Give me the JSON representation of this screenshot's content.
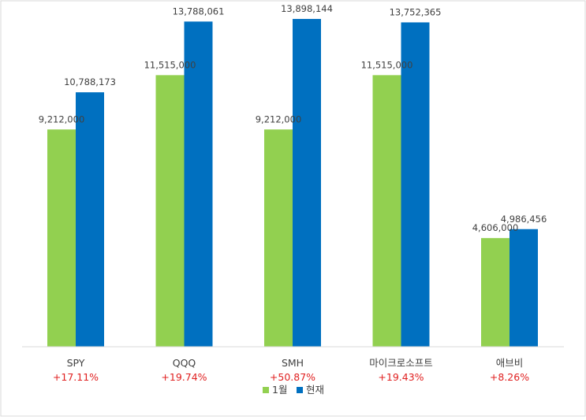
{
  "chart_data": {
    "type": "bar",
    "categories": [
      "SPY",
      "QQQ",
      "SMH",
      "마이크로소프트",
      "애브비"
    ],
    "series": [
      {
        "name": "1월",
        "values": [
          9212000,
          11515000,
          9212000,
          11515000,
          4606000
        ],
        "labels": [
          "9,212,000",
          "11,515,000",
          "9,212,000",
          "11,515,000",
          "4,606,000"
        ]
      },
      {
        "name": "현재",
        "values": [
          10788173,
          13788061,
          13898144,
          13752365,
          4986456
        ],
        "labels": [
          "10,788,173",
          "13,788,061",
          "13,898,144",
          "13,752,365",
          "4,986,456"
        ]
      }
    ],
    "returns": [
      "+17.11%",
      "+19.74%",
      "+50.87%",
      "+19.43%",
      "+8.26%"
    ],
    "ylim": [
      0,
      14000000
    ],
    "grid": false,
    "legend": "bottom",
    "colors": {
      "series_0": "#92d050",
      "series_1": "#0070c0",
      "returns": "#e02020",
      "axis": "#d9d9d9",
      "label": "#404040"
    }
  }
}
